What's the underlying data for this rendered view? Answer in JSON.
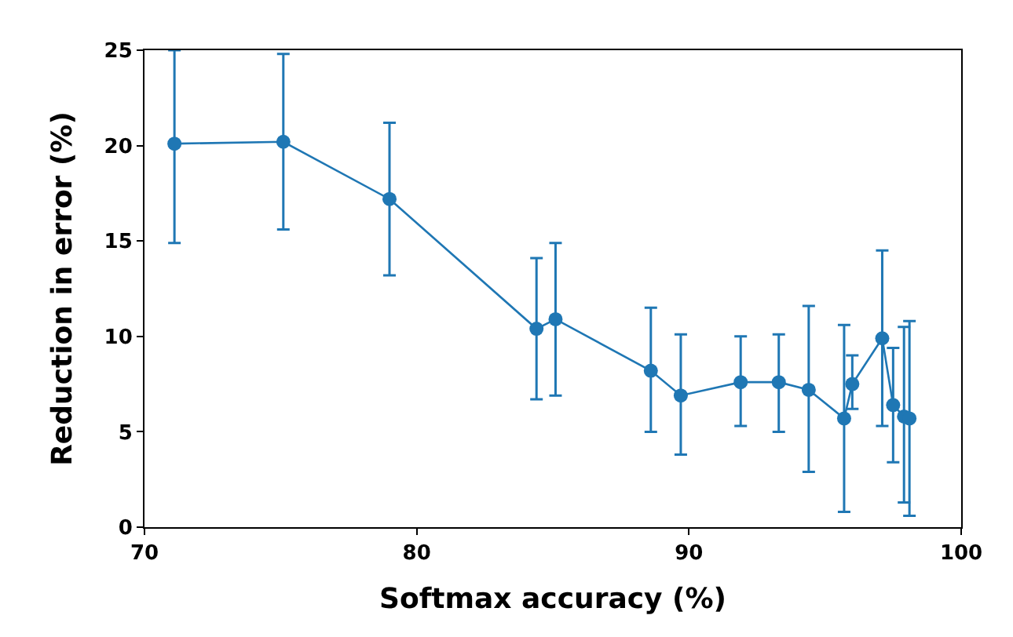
{
  "chart_data": {
    "type": "line",
    "xlabel": "Softmax accuracy (%)",
    "ylabel": "Reduction in error (%)",
    "xlim": [
      70,
      100
    ],
    "xticks": [
      70,
      80,
      90,
      100
    ],
    "ylim": [
      0,
      25
    ],
    "yticks": [
      0,
      5,
      10,
      15,
      20,
      25
    ],
    "legend": false,
    "marker": "circle",
    "line_style": "solid",
    "series": [
      {
        "color": "#1f77b4",
        "x": [
          71.1,
          75.1,
          79.0,
          84.4,
          85.1,
          88.6,
          89.7,
          91.9,
          93.3,
          94.4,
          95.7,
          96.0,
          97.1,
          97.5,
          97.9,
          98.1
        ],
        "values": [
          20.1,
          20.2,
          17.2,
          10.4,
          10.9,
          8.2,
          6.9,
          7.6,
          7.6,
          7.2,
          5.7,
          7.5,
          9.9,
          6.4,
          5.8,
          5.7
        ],
        "errors": [
          [
            14.9,
            25
          ],
          [
            15.6,
            24.8
          ],
          [
            13.2,
            21.2
          ],
          [
            6.7,
            14.1
          ],
          [
            6.9,
            14.9
          ],
          [
            5.0,
            11.5
          ],
          [
            3.8,
            10.1
          ],
          [
            5.3,
            10.0
          ],
          [
            5.0,
            10.1
          ],
          [
            2.9,
            11.6
          ],
          [
            0.8,
            10.6
          ],
          [
            6.2,
            9.0
          ],
          [
            5.3,
            14.5
          ],
          [
            3.4,
            9.4
          ],
          [
            1.3,
            10.5
          ],
          [
            0.6,
            10.8
          ]
        ]
      }
    ]
  }
}
